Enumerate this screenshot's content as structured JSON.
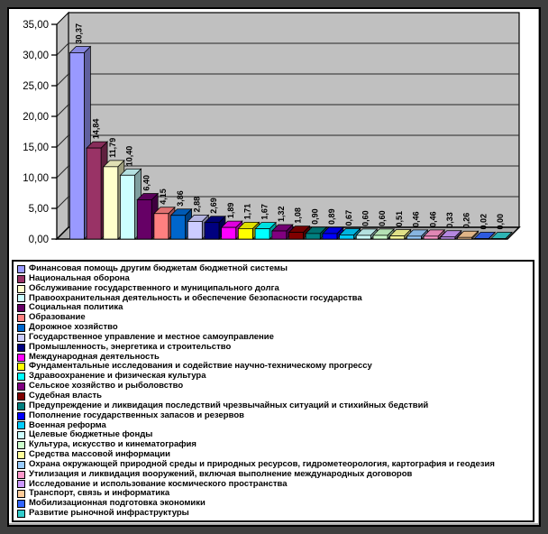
{
  "frame": {
    "outer_color": "#3e3e3e",
    "border_color": "#000000",
    "background": "#ffffff"
  },
  "chart_data": {
    "type": "bar",
    "style": "3d-column",
    "title": "",
    "xlabel": "",
    "ylabel": "",
    "ylim": [
      0,
      35
    ],
    "grid": true,
    "legend_position": "bottom",
    "wall_color": "#c0c0c0",
    "floor_color": "#adadad",
    "y_ticks": [
      0,
      5,
      10,
      15,
      20,
      25,
      30,
      35
    ],
    "y_tick_labels": [
      "0,00",
      "5,00",
      "10,00",
      "15,00",
      "20,00",
      "25,00",
      "30,00",
      "35,00"
    ],
    "categories": [
      "Финансовая помощь другим бюджетам бюджетной системы",
      "Национальная оборона",
      "Обслуживание государственного и муниципального долга",
      "Правоохранительная деятельность и обеспечение безопасности государства",
      "Социальная политика",
      "Образование",
      "Дорожное хозяйство",
      "Государственное управление и местное самоуправление",
      "Промышленность, энергетика и строительство",
      "Международная деятельность",
      "Фундаментальные исследования и содействие научно-техническому прогрессу",
      "Здравоохранение и физическая культура",
      "Сельское хозяйство и рыболовство",
      "Судебная власть",
      "Предупреждение и ликвидация последствий чрезвычайных ситуаций и стихийных бедствий",
      "Пополнение государственных запасов и резервов",
      "Военная реформа",
      "Целевые бюджетные фонды",
      "Культура, искусство и кинематография",
      "Средства массовой информации",
      "Охрана окружающей природной среды и природных ресурсов, гидрометеорология, картография и геодезия",
      "Утилизация и ликвидация вооружений, включая выполнение международных договоров",
      "Исследование и использование космического пространства",
      "Транспорт, связь и информатика",
      "Мобилизационная подготовка экономики",
      "Развитие рыночной инфраструктуры"
    ],
    "values": [
      30.37,
      14.84,
      11.79,
      10.4,
      6.4,
      4.15,
      3.86,
      2.88,
      2.69,
      1.89,
      1.71,
      1.67,
      1.32,
      1.08,
      0.9,
      0.89,
      0.67,
      0.6,
      0.6,
      0.51,
      0.46,
      0.46,
      0.33,
      0.26,
      0.02,
      0.0
    ],
    "value_labels": [
      "30,37",
      "14,84",
      "11,79",
      "10,40",
      "6,40",
      "4,15",
      "3,86",
      "2,88",
      "2,69",
      "1,89",
      "1,71",
      "1,67",
      "1,32",
      "1,08",
      "0,90",
      "0,89",
      "0,67",
      "0,60",
      "0,60",
      "0,51",
      "0,46",
      "0,46",
      "0,33",
      "0,26",
      "0,02",
      "0,00"
    ],
    "colors": [
      "#9999FF",
      "#993366",
      "#FFFFCC",
      "#CCFFFF",
      "#660066",
      "#FF8080",
      "#0066CC",
      "#CCCCFF",
      "#000080",
      "#FF00FF",
      "#FFFF00",
      "#00FFFF",
      "#800080",
      "#800000",
      "#008080",
      "#0000FF",
      "#00CCFF",
      "#CCFFFF",
      "#CCFFCC",
      "#FFFF99",
      "#99CCFF",
      "#FF99CC",
      "#CC99FF",
      "#FFCC99",
      "#3366FF",
      "#33CCCC"
    ]
  }
}
